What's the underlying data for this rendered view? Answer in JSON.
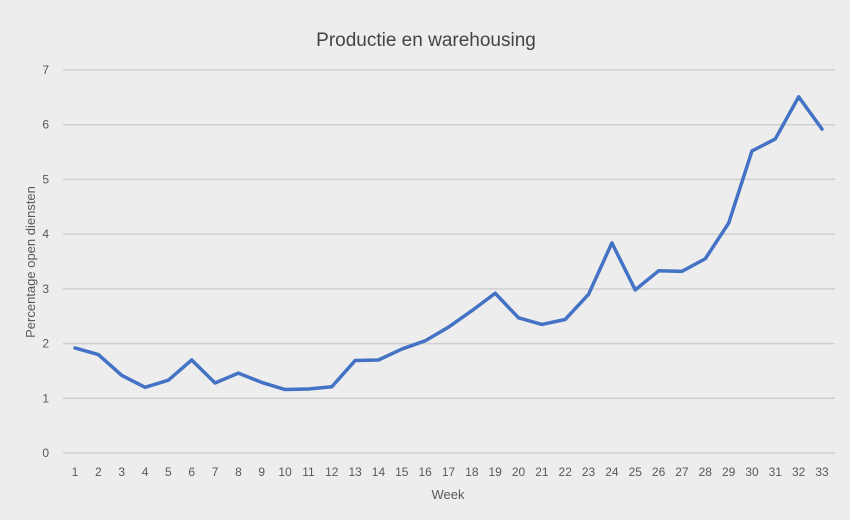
{
  "chart_data": {
    "type": "line",
    "title": "Productie en warehousing",
    "xlabel": "Week",
    "ylabel": "Percentage open diensten",
    "ylim": [
      0,
      7
    ],
    "yticks": [
      0,
      1,
      2,
      3,
      4,
      5,
      6,
      7
    ],
    "grid": true,
    "legend": "none",
    "x": [
      1,
      2,
      3,
      4,
      5,
      6,
      7,
      8,
      9,
      10,
      11,
      12,
      13,
      14,
      15,
      16,
      17,
      18,
      19,
      20,
      21,
      22,
      23,
      24,
      25,
      26,
      27,
      28,
      29,
      30,
      31,
      32,
      33
    ],
    "series": [
      {
        "color": "#4472c4",
        "values": [
          1.92,
          1.8,
          1.42,
          1.2,
          1.33,
          1.7,
          1.28,
          1.46,
          1.29,
          1.16,
          1.17,
          1.21,
          1.69,
          1.7,
          1.9,
          2.05,
          2.3,
          2.6,
          2.92,
          2.47,
          2.35,
          2.44,
          2.9,
          3.84,
          2.98,
          3.33,
          3.32,
          3.55,
          4.2,
          5.52,
          5.74,
          6.51,
          5.92
        ]
      }
    ]
  }
}
